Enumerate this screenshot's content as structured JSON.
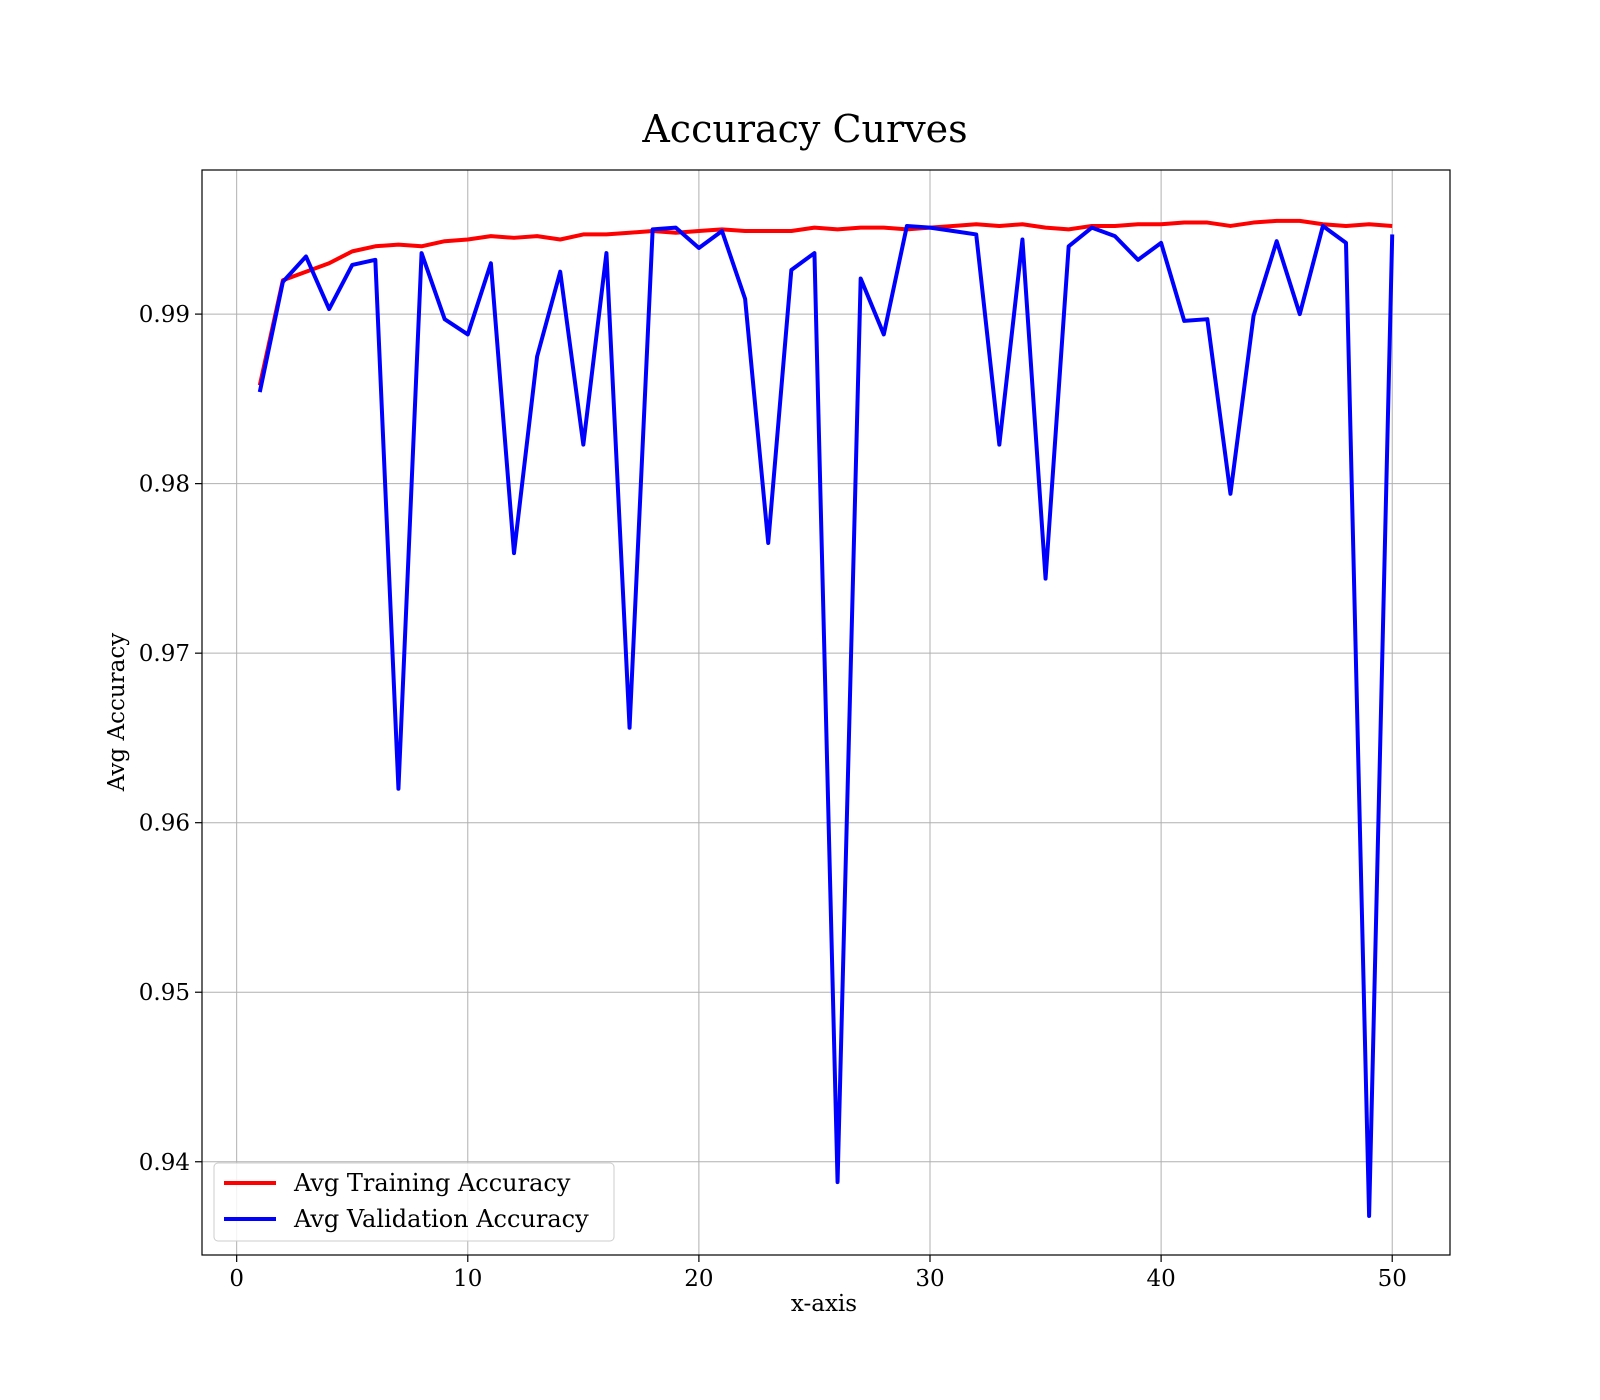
{
  "chart_data": {
    "type": "line",
    "title": "Accuracy Curves",
    "xlabel": "x-axis",
    "ylabel": "Avg Accuracy",
    "xlim": [
      -1.5,
      52.5
    ],
    "ylim": [
      0.9345,
      0.9985
    ],
    "xticks": [
      0,
      10,
      20,
      30,
      40,
      50
    ],
    "xtick_labels": [
      "0",
      "10",
      "20",
      "30",
      "40",
      "50"
    ],
    "yticks": [
      0.94,
      0.95,
      0.96,
      0.97,
      0.98,
      0.99
    ],
    "ytick_labels": [
      "0.94",
      "0.95",
      "0.96",
      "0.97",
      "0.98",
      "0.99"
    ],
    "grid": true,
    "legend_position": "lower-left",
    "x": [
      1,
      2,
      3,
      4,
      5,
      6,
      7,
      8,
      9,
      10,
      11,
      12,
      13,
      14,
      15,
      16,
      17,
      18,
      19,
      20,
      21,
      22,
      23,
      24,
      25,
      26,
      27,
      28,
      29,
      30,
      31,
      32,
      33,
      34,
      35,
      36,
      37,
      38,
      39,
      40,
      41,
      42,
      43,
      44,
      45,
      46,
      47,
      48,
      49,
      50
    ],
    "series": [
      {
        "name": "Avg Training Accuracy",
        "color": "#ff0000",
        "values": [
          0.9858,
          0.992,
          0.9925,
          0.993,
          0.9937,
          0.994,
          0.9941,
          0.994,
          0.9943,
          0.9944,
          0.9946,
          0.9945,
          0.9946,
          0.9944,
          0.9947,
          0.9947,
          0.9948,
          0.9949,
          0.9948,
          0.9949,
          0.995,
          0.9949,
          0.9949,
          0.9949,
          0.9951,
          0.995,
          0.9951,
          0.9951,
          0.995,
          0.9951,
          0.9952,
          0.9953,
          0.9952,
          0.9953,
          0.9951,
          0.995,
          0.9952,
          0.9952,
          0.9953,
          0.9953,
          0.9954,
          0.9954,
          0.9952,
          0.9954,
          0.9955,
          0.9955,
          0.9953,
          0.9952,
          0.9953,
          0.9952
        ]
      },
      {
        "name": "Avg Validation Accuracy",
        "color": "#0000ff",
        "values": [
          0.9854,
          0.9919,
          0.9934,
          0.9903,
          0.9929,
          0.9932,
          0.962,
          0.9936,
          0.9897,
          0.9888,
          0.993,
          0.9759,
          0.9875,
          0.9925,
          0.9823,
          0.9936,
          0.9656,
          0.995,
          0.9951,
          0.9939,
          0.9949,
          0.9909,
          0.9765,
          0.9926,
          0.9936,
          0.9388,
          0.9921,
          0.9888,
          0.9952,
          0.9951,
          0.9949,
          0.9947,
          0.9823,
          0.9944,
          0.9744,
          0.994,
          0.9951,
          0.9946,
          0.9932,
          0.9942,
          0.9896,
          0.9897,
          0.9794,
          0.9899,
          0.9943,
          0.99,
          0.9952,
          0.9942,
          0.9368,
          0.9947
        ]
      }
    ]
  }
}
